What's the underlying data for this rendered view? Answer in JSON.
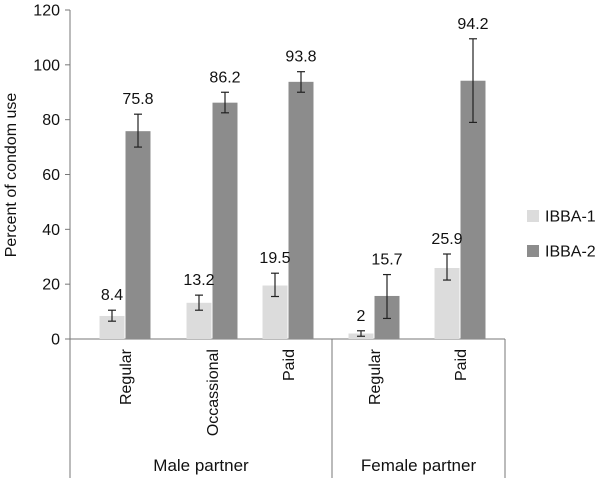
{
  "chart_data": {
    "type": "bar",
    "ylabel": "Percent of condom use",
    "ylim": [
      0,
      120
    ],
    "yticks": [
      0,
      20,
      40,
      60,
      80,
      100,
      120
    ],
    "grid": false,
    "legend_position": "right",
    "groups": [
      {
        "label": "Male partner",
        "categories": [
          "Regular",
          "Occassional",
          "Paid"
        ]
      },
      {
        "label": "Female partner",
        "categories": [
          "Regular",
          "Paid"
        ]
      }
    ],
    "categories": [
      "Regular",
      "Occassional",
      "Paid",
      "Regular",
      "Paid"
    ],
    "series": [
      {
        "name": "IBBA-1",
        "color": "#dcdcdc",
        "values": [
          8.4,
          13.2,
          19.5,
          2,
          25.9
        ],
        "error_low": [
          6.5,
          10.5,
          15.5,
          1,
          21.5
        ],
        "error_high": [
          10.5,
          16,
          24,
          3,
          31
        ]
      },
      {
        "name": "IBBA-2",
        "color": "#8c8c8c",
        "values": [
          75.8,
          86.2,
          93.8,
          15.7,
          94.2
        ],
        "error_low": [
          70,
          82.5,
          90,
          7.5,
          79
        ],
        "error_high": [
          82,
          90,
          97.5,
          23.5,
          109.5
        ]
      }
    ]
  }
}
